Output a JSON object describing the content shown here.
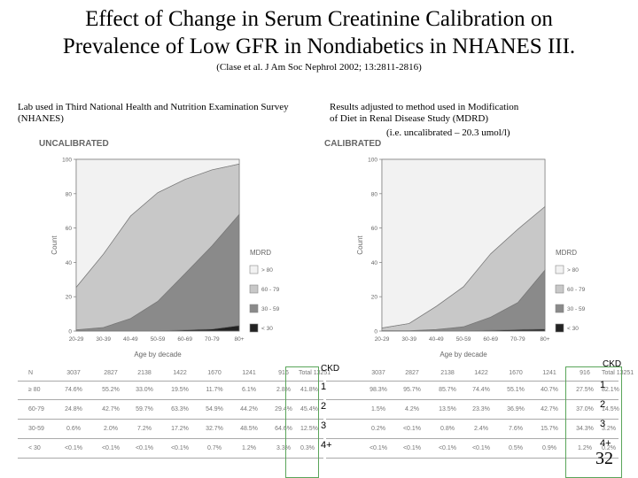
{
  "title_line1": "Effect of Change in Serum Creatinine Calibration on",
  "title_line2": "Prevalence of Low GFR in Nondiabetics in NHANES III.",
  "citation": "(Clase et al. J Am Soc Nephrol 2002; 13:2811-2816)",
  "left_caption_line1": "Lab used in Third National Health and Nutrition Examination Survey",
  "left_caption_line2": "(NHANES)",
  "right_caption_line1": "Results adjusted to method used in Modification",
  "right_caption_line2": "of Diet in Renal Disease Study (MDRD)",
  "right_caption_line3": "(i.e. uncalibrated – 20.3 umol/l)",
  "page_number": "32",
  "ckd_header": "CKD",
  "ckd_stages": [
    "1",
    "2",
    "3",
    "4+"
  ],
  "colors": {
    "ckd_box": "#5aa55a",
    "gt80": "#f2f2f2",
    "60_79": "#c8c8c8",
    "30_59": "#8a8a8a",
    "lt30": "#222222"
  },
  "chart_data": [
    {
      "type": "area",
      "panel_label": "UNCALIBRATED",
      "xlabel": "Age by decade",
      "ylabel": "Count",
      "legend_title": "MDRD",
      "legend_position": "right",
      "ylim": [
        0,
        100
      ],
      "yticks": [
        "0",
        "20",
        "40",
        "60",
        "80",
        "100"
      ],
      "categories": [
        "20-29",
        "30-39",
        "40-49",
        "50-59",
        "60-69",
        "70-79",
        "80+"
      ],
      "series": [
        {
          "name": "< 30",
          "values": [
            0.1,
            0.1,
            0.1,
            0.1,
            0.7,
            1.2,
            3.3
          ]
        },
        {
          "name": "30 - 59",
          "values": [
            0.6,
            2.0,
            7.2,
            17.2,
            32.7,
            48.5,
            64.6
          ]
        },
        {
          "name": "60 - 79",
          "values": [
            24.8,
            42.7,
            59.7,
            63.3,
            54.9,
            44.2,
            29.4
          ]
        },
        {
          "name": "> 80",
          "values": [
            74.6,
            55.2,
            33.0,
            19.5,
            11.7,
            6.1,
            2.8
          ]
        }
      ],
      "table": {
        "header_label": "N",
        "header_values": [
          "3037",
          "2827",
          "2138",
          "1422",
          "1670",
          "1241",
          "916"
        ],
        "total_label": "Total 13251",
        "rows": [
          {
            "label": "≥ 80",
            "values": [
              "74.6%",
              "55.2%",
              "33.0%",
              "19.5%",
              "11.7%",
              "6.1%",
              "2.8%"
            ],
            "total": "41.8%"
          },
          {
            "label": "60-79",
            "values": [
              "24.8%",
              "42.7%",
              "59.7%",
              "63.3%",
              "54.9%",
              "44.2%",
              "29.4%"
            ],
            "total": "45.4%"
          },
          {
            "label": "30-59",
            "values": [
              "0.6%",
              "2.0%",
              "7.2%",
              "17.2%",
              "32.7%",
              "48.5%",
              "64.6%"
            ],
            "total": "12.5%"
          },
          {
            "label": "< 30",
            "values": [
              "<0.1%",
              "<0.1%",
              "<0.1%",
              "<0.1%",
              "0.7%",
              "1.2%",
              "3.3%"
            ],
            "total": "0.3%"
          }
        ]
      }
    },
    {
      "type": "area",
      "panel_label": "CALIBRATED",
      "xlabel": "Age by decade",
      "ylabel": "Count",
      "legend_title": "MDRD",
      "legend_position": "right",
      "ylim": [
        0,
        100
      ],
      "yticks": [
        "0",
        "20",
        "40",
        "60",
        "80",
        "100"
      ],
      "categories": [
        "20-29",
        "30-39",
        "40-49",
        "50-59",
        "60-69",
        "70-79",
        "80+"
      ],
      "series": [
        {
          "name": "< 30",
          "values": [
            0.1,
            0.1,
            0.1,
            0.1,
            0.5,
            0.9,
            1.2
          ]
        },
        {
          "name": "30 - 59",
          "values": [
            0.2,
            0.1,
            0.8,
            2.4,
            7.6,
            15.7,
            34.3
          ]
        },
        {
          "name": "60 - 79",
          "values": [
            1.5,
            4.2,
            13.5,
            23.3,
            36.9,
            42.7,
            37.0
          ]
        },
        {
          "name": "> 80",
          "values": [
            98.3,
            95.7,
            85.7,
            74.4,
            55.1,
            40.7,
            27.5
          ]
        }
      ],
      "table": {
        "header_label": "N",
        "header_values": [
          "3037",
          "2827",
          "2138",
          "1422",
          "1670",
          "1241",
          "916"
        ],
        "total_label": "Total 13251",
        "rows": [
          {
            "label": "≥ 80",
            "values": [
              "98.3%",
              "95.7%",
              "85.7%",
              "74.4%",
              "55.1%",
              "40.7%",
              "27.5%"
            ],
            "total": "82.1%"
          },
          {
            "label": "60-79",
            "values": [
              "1.5%",
              "4.2%",
              "13.5%",
              "23.3%",
              "36.9%",
              "42.7%",
              "37.0%"
            ],
            "total": "14.5%"
          },
          {
            "label": "30-59",
            "values": [
              "0.2%",
              "<0.1%",
              "0.8%",
              "2.4%",
              "7.6%",
              "15.7%",
              "34.3%"
            ],
            "total": "3.2%"
          },
          {
            "label": "< 30",
            "values": [
              "<0.1%",
              "<0.1%",
              "<0.1%",
              "<0.1%",
              "0.5%",
              "0.9%",
              "1.2%"
            ],
            "total": "0.2%"
          }
        ]
      }
    }
  ]
}
